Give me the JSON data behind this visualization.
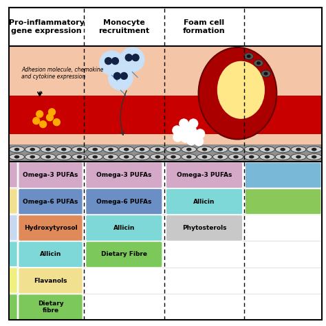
{
  "columns": [
    {
      "header": "Pro-inflammatory\ngene expression"
    },
    {
      "header": "Monocyte\nrecruitment"
    },
    {
      "header": "Foam cell\nformation"
    },
    {
      "header": ""
    }
  ],
  "col1_items": [
    {
      "label": "Omega-3 PUFAs",
      "color": "#d4a8c7"
    },
    {
      "label": "Omega-6 PUFAs",
      "color": "#6b8fc4"
    },
    {
      "label": "Hydroxytyrosol",
      "color": "#e08a5a"
    },
    {
      "label": "Allicin",
      "color": "#7ed8d8"
    },
    {
      "label": "Flavanols",
      "color": "#f0e090"
    },
    {
      "label": "Dietary\nfibre",
      "color": "#7dc85a"
    }
  ],
  "col2_items": [
    {
      "label": "Omega-3 PUFAs",
      "color": "#d4a8c7"
    },
    {
      "label": "Omega-6 PUFAs",
      "color": "#6b8fc4"
    },
    {
      "label": "Allicin",
      "color": "#7ed8d8"
    },
    {
      "label": "Dietary Fibre",
      "color": "#7dc85a"
    }
  ],
  "col3_items": [
    {
      "label": "Omega-3 PUFAs",
      "color": "#d4a8c7"
    },
    {
      "label": "Allicin",
      "color": "#7ed8d8"
    },
    {
      "label": "Phytosterols",
      "color": "#c8c8c8"
    }
  ],
  "col4_row1_color": "#7ab8d8",
  "col4_row2_color": "#8bc85a",
  "left_strip_colors": [
    "#d4a8c7",
    "#f0e090",
    "#c8d8f0",
    "#7ed8d8",
    "#f0f080",
    "#7dc85a"
  ],
  "adhesion_text": "Adhesion molecule, chemokine\nand cytokine expression",
  "bg_peach": "#f5c5a8",
  "bg_blood": "#c80000",
  "endo_bg": "#808080"
}
